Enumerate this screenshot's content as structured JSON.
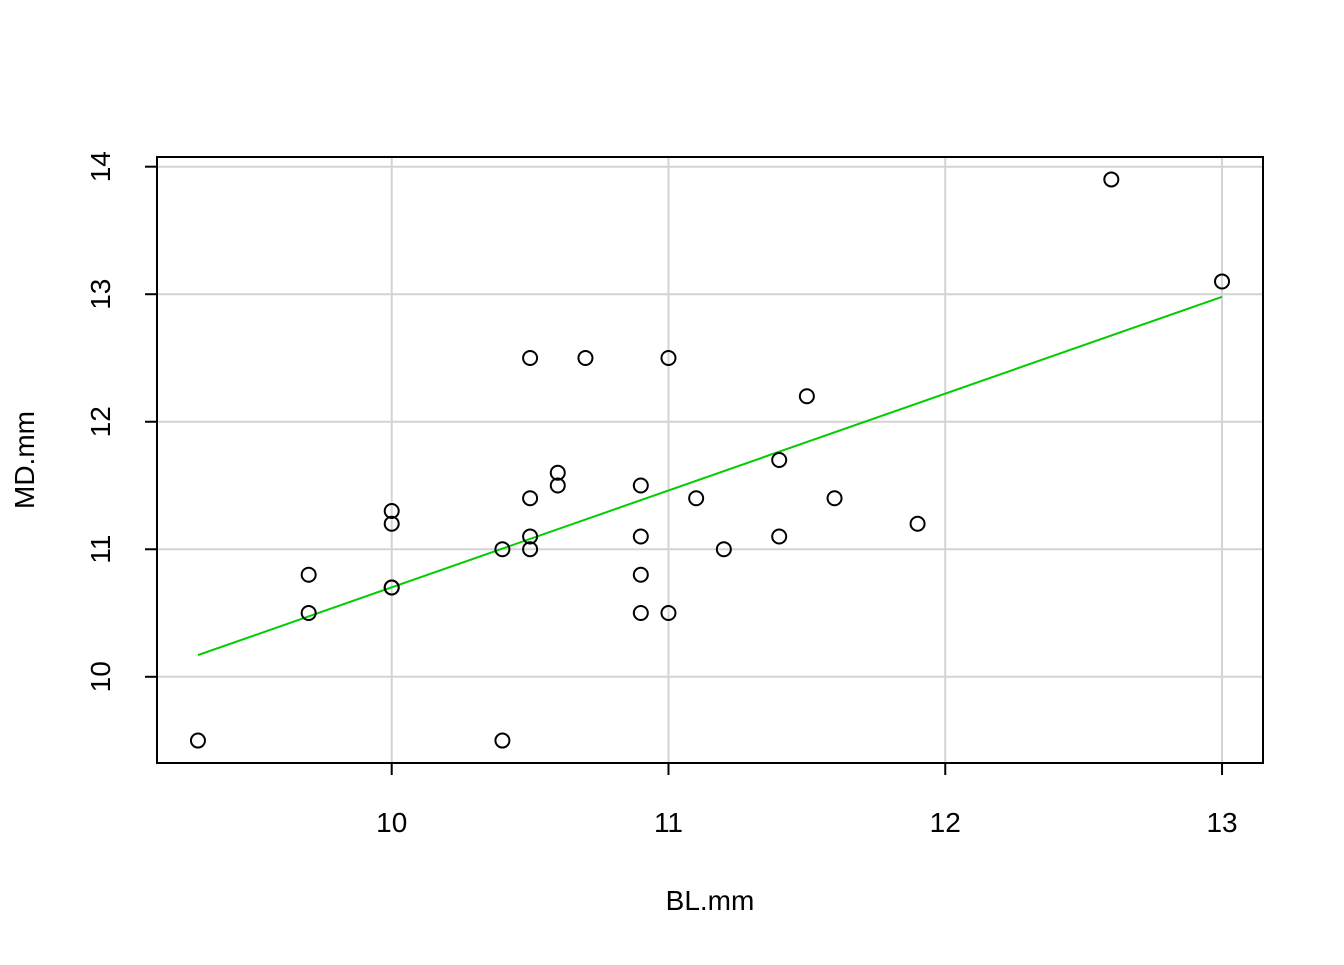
{
  "chart_data": {
    "type": "scatter",
    "xlabel": "BL.mm",
    "ylabel": "MD.mm",
    "xlim": [
      9.152,
      13.148
    ],
    "ylim": [
      9.324,
      14.076
    ],
    "xticks": [
      10,
      11,
      12,
      13
    ],
    "yticks": [
      10,
      11,
      12,
      13,
      14
    ],
    "grid": true,
    "grid_color": "#d3d3d3",
    "points": {
      "color": "#000000",
      "x": [
        9.3,
        9.7,
        9.7,
        10.0,
        10.0,
        10.0,
        10.0,
        10.4,
        10.4,
        10.5,
        10.5,
        10.5,
        10.5,
        10.6,
        10.6,
        10.7,
        10.9,
        10.9,
        10.9,
        10.9,
        11.0,
        11.0,
        11.1,
        11.2,
        11.4,
        11.4,
        11.5,
        11.6,
        11.9,
        12.6,
        13.0
      ],
      "y": [
        9.5,
        10.8,
        10.5,
        11.3,
        11.2,
        10.7,
        10.7,
        11.0,
        9.5,
        12.5,
        11.4,
        11.1,
        11.0,
        11.6,
        11.5,
        12.5,
        11.5,
        11.1,
        10.8,
        10.5,
        12.5,
        10.5,
        11.4,
        11.0,
        11.7,
        11.1,
        12.2,
        11.4,
        11.2,
        13.9,
        13.1
      ]
    },
    "fit_line": {
      "color": "#00cd00",
      "x": [
        9.3,
        13.0
      ],
      "y": [
        10.17,
        12.98
      ]
    }
  }
}
